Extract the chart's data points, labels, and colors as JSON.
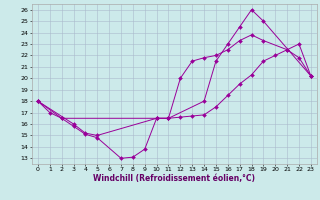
{
  "xlabel": "Windchill (Refroidissement éolien,°C)",
  "xlim": [
    -0.5,
    23.5
  ],
  "ylim": [
    12.5,
    26.5
  ],
  "yticks": [
    13,
    14,
    15,
    16,
    17,
    18,
    19,
    20,
    21,
    22,
    23,
    24,
    25,
    26
  ],
  "xticks": [
    0,
    1,
    2,
    3,
    4,
    5,
    6,
    7,
    8,
    9,
    10,
    11,
    12,
    13,
    14,
    15,
    16,
    17,
    18,
    19,
    20,
    21,
    22,
    23
  ],
  "bg_color": "#cceaea",
  "grid_color": "#aabbcc",
  "line_color": "#990099",
  "line1_x": [
    0,
    1,
    2,
    3,
    4,
    5,
    7,
    8,
    9,
    10,
    11,
    14,
    15,
    16,
    17,
    18,
    19,
    23
  ],
  "line1_y": [
    18.0,
    17.0,
    16.5,
    15.8,
    15.1,
    14.8,
    13.0,
    13.1,
    13.8,
    16.5,
    16.5,
    18.0,
    21.5,
    23.0,
    24.5,
    26.0,
    25.0,
    20.2
  ],
  "line2_x": [
    0,
    2,
    10,
    11,
    12,
    13,
    14,
    15,
    16,
    17,
    18,
    19,
    20,
    21,
    22,
    23
  ],
  "line2_y": [
    18.0,
    16.5,
    16.5,
    16.5,
    16.6,
    16.7,
    16.8,
    17.5,
    18.5,
    19.5,
    20.3,
    21.5,
    22.0,
    22.5,
    23.0,
    20.2
  ],
  "line3_x": [
    0,
    3,
    4,
    5,
    10,
    11,
    12,
    13,
    14,
    15,
    16,
    17,
    18,
    19,
    21,
    22,
    23
  ],
  "line3_y": [
    18.0,
    16.0,
    15.2,
    15.0,
    16.5,
    16.5,
    20.0,
    21.5,
    21.8,
    22.0,
    22.5,
    23.3,
    23.8,
    23.3,
    22.5,
    21.8,
    20.2
  ],
  "xlabel_color": "#660066",
  "xlabel_fontsize": 5.5,
  "tick_fontsize": 4.5,
  "linewidth": 0.7,
  "markersize": 2.0
}
